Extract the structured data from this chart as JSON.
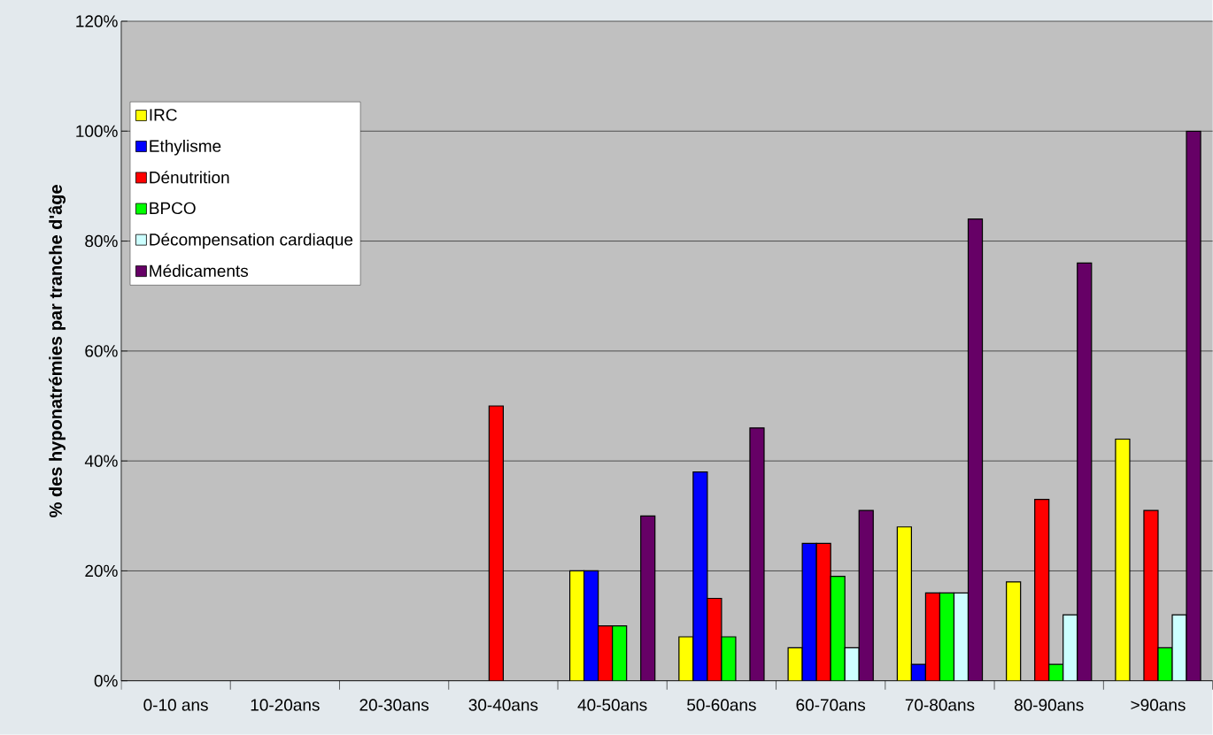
{
  "chart_data": {
    "type": "bar",
    "ylabel": "% des hyponatrémies par tranche d'âge",
    "categories": [
      "0-10 ans",
      "10-20ans",
      "20-30ans",
      "30-40ans",
      "40-50ans",
      "50-60ans",
      "60-70ans",
      "70-80ans",
      "80-90ans",
      ">90ans"
    ],
    "series": [
      {
        "name": "IRC",
        "color": "#ffff00",
        "values": [
          null,
          null,
          null,
          null,
          20,
          8,
          6,
          28,
          18,
          44
        ]
      },
      {
        "name": "Ethylisme",
        "color": "#0000ff",
        "values": [
          null,
          null,
          null,
          null,
          20,
          38,
          25,
          3,
          null,
          null
        ]
      },
      {
        "name": "Dénutrition",
        "color": "#ff0000",
        "values": [
          null,
          null,
          null,
          50,
          10,
          15,
          25,
          16,
          33,
          31
        ]
      },
      {
        "name": "BPCO",
        "color": "#00ff00",
        "values": [
          null,
          null,
          null,
          null,
          10,
          8,
          19,
          16,
          3,
          6
        ]
      },
      {
        "name": "Décompensation cardiaque",
        "color": "#ccffff",
        "values": [
          null,
          null,
          null,
          null,
          null,
          null,
          6,
          16,
          12,
          12
        ]
      },
      {
        "name": "Médicaments",
        "color": "#660066",
        "values": [
          null,
          null,
          null,
          null,
          30,
          46,
          31,
          84,
          76,
          100
        ]
      }
    ],
    "ylim": [
      0,
      120
    ],
    "yticks": [
      {
        "value": 0,
        "label": "0%"
      },
      {
        "value": 20,
        "label": "20%"
      },
      {
        "value": 40,
        "label": "40%"
      },
      {
        "value": 60,
        "label": "60%"
      },
      {
        "value": 80,
        "label": "80%"
      },
      {
        "value": 100,
        "label": "100%"
      },
      {
        "value": 120,
        "label": "120%"
      }
    ],
    "grid": "y",
    "legend": "top left"
  }
}
